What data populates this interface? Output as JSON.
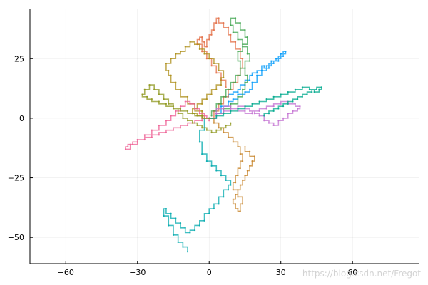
{
  "chart_data": {
    "type": "line",
    "title": "",
    "xlabel": "",
    "ylabel": "",
    "xlim": [
      -75,
      88
    ],
    "ylim": [
      -61,
      46
    ],
    "x_ticks": [
      -60,
      -30,
      0,
      30,
      60
    ],
    "y_ticks": [
      -50,
      -25,
      0,
      25
    ],
    "x_tick_labels": [
      "−60",
      "−30",
      "0",
      "30",
      "60"
    ],
    "y_tick_labels": [
      "−50",
      "−25",
      "0",
      "25"
    ],
    "grid": true,
    "legend": "none",
    "series": [
      {
        "color": "#009AFA",
        "x": [
          0,
          3,
          5,
          8,
          10,
          12,
          15,
          17,
          18,
          20,
          22,
          24,
          26,
          28,
          30,
          32,
          31,
          29,
          27,
          25,
          23,
          22,
          20,
          18,
          17,
          15,
          13,
          12,
          10,
          8
        ],
        "y": [
          0,
          2,
          5,
          7,
          8,
          10,
          11,
          12,
          15,
          18,
          20,
          22,
          24,
          25,
          27,
          28,
          26,
          24,
          23,
          21,
          22,
          20,
          19,
          18,
          16,
          14,
          12,
          11,
          10,
          9
        ]
      },
      {
        "color": "#E36F47",
        "x": [
          0,
          2,
          4,
          6,
          8,
          10,
          12,
          13,
          14,
          13,
          11,
          9,
          8,
          6,
          4,
          3,
          2,
          1,
          0,
          -1,
          -2,
          -3,
          -4,
          -5,
          -3,
          -1,
          1,
          3,
          5,
          7
        ],
        "y": [
          0,
          3,
          6,
          9,
          12,
          15,
          18,
          21,
          25,
          29,
          32,
          35,
          38,
          40,
          42,
          40,
          37,
          35,
          33,
          30,
          32,
          34,
          33,
          31,
          28,
          25,
          22,
          19,
          16,
          13
        ]
      },
      {
        "color": "#3EA44E",
        "x": [
          0,
          3,
          6,
          9,
          12,
          14,
          15,
          16,
          15,
          13,
          12,
          14,
          16,
          15,
          13,
          11,
          9,
          10,
          12,
          14,
          16,
          17,
          15,
          13,
          11,
          9,
          7,
          5,
          3,
          1
        ],
        "y": [
          0,
          2,
          4,
          6,
          9,
          12,
          15,
          18,
          21,
          24,
          28,
          31,
          34,
          37,
          40,
          42,
          39,
          36,
          33,
          30,
          27,
          24,
          21,
          18,
          15,
          12,
          9,
          6,
          3,
          1
        ]
      },
      {
        "color": "#C371D2",
        "x": [
          0,
          3,
          6,
          9,
          12,
          15,
          17,
          19,
          21,
          23,
          25,
          27,
          29,
          31,
          33,
          35,
          37,
          38,
          36,
          33,
          30,
          27,
          24,
          21,
          18,
          15,
          12,
          9,
          6,
          3
        ],
        "y": [
          0,
          2,
          3,
          4,
          5,
          4,
          3,
          2,
          1,
          -1,
          -2,
          -3,
          -1,
          0,
          2,
          3,
          4,
          5,
          6,
          7,
          6,
          5,
          4,
          3,
          2,
          3,
          4,
          5,
          4,
          2
        ]
      },
      {
        "color": "#AC8D18",
        "x": [
          0,
          -3,
          -6,
          -9,
          -12,
          -14,
          -16,
          -17,
          -18,
          -16,
          -14,
          -12,
          -10,
          -8,
          -6,
          -4,
          -2,
          0,
          2,
          4,
          6,
          5,
          3,
          1,
          -1,
          -3,
          -5,
          -7,
          -5,
          -2
        ],
        "y": [
          0,
          3,
          6,
          9,
          12,
          15,
          18,
          20,
          23,
          25,
          27,
          28,
          30,
          32,
          31,
          29,
          27,
          25,
          23,
          20,
          17,
          14,
          12,
          10,
          8,
          6,
          4,
          2,
          1,
          0
        ]
      },
      {
        "color": "#00A9AD",
        "x": [
          0,
          -2,
          -4,
          -3,
          -1,
          1,
          3,
          5,
          7,
          9,
          8,
          6,
          4,
          2,
          0,
          -2,
          -4,
          -6,
          -8,
          -10,
          -12,
          -14,
          -16,
          -18,
          -19,
          -17,
          -15,
          -13,
          -11,
          -9
        ],
        "y": [
          0,
          -5,
          -10,
          -15,
          -18,
          -20,
          -22,
          -24,
          -26,
          -28,
          -30,
          -33,
          -36,
          -38,
          -40,
          -43,
          -45,
          -47,
          -48,
          -46,
          -44,
          -42,
          -40,
          -38,
          -41,
          -45,
          -49,
          -52,
          -54,
          -56
        ]
      },
      {
        "color": "#ED5E93",
        "x": [
          0,
          -3,
          -6,
          -9,
          -12,
          -15,
          -18,
          -21,
          -24,
          -27,
          -30,
          -32,
          -34,
          -35,
          -33,
          -30,
          -27,
          -24,
          -21,
          -18,
          -16,
          -14,
          -12,
          -10,
          -8,
          -6,
          -4,
          -2,
          -1,
          0
        ],
        "y": [
          0,
          -1,
          -2,
          -3,
          -4,
          -5,
          -6,
          -7,
          -8,
          -9,
          -10,
          -11,
          -12,
          -13,
          -11,
          -9,
          -7,
          -5,
          -3,
          -1,
          1,
          3,
          5,
          7,
          6,
          4,
          2,
          1,
          0,
          -1
        ]
      },
      {
        "color": "#C68225",
        "x": [
          0,
          2,
          4,
          6,
          8,
          10,
          12,
          13,
          14,
          13,
          12,
          11,
          10,
          12,
          14,
          13,
          12,
          11,
          10,
          11,
          12,
          13,
          14,
          15,
          16,
          17,
          18,
          19,
          17,
          15
        ],
        "y": [
          0,
          -2,
          -4,
          -6,
          -8,
          -10,
          -12,
          -15,
          -18,
          -21,
          -24,
          -27,
          -30,
          -33,
          -36,
          -39,
          -38,
          -36,
          -34,
          -32,
          -30,
          -28,
          -26,
          -24,
          -22,
          -20,
          -18,
          -16,
          -14,
          -12
        ]
      },
      {
        "color": "#00A98D",
        "x": [
          0,
          3,
          6,
          9,
          12,
          15,
          18,
          21,
          24,
          27,
          30,
          33,
          36,
          39,
          42,
          44,
          46,
          47,
          45,
          43,
          41,
          39,
          37,
          35,
          33,
          31,
          29,
          27,
          25,
          23
        ],
        "y": [
          0,
          1,
          2,
          3,
          4,
          5,
          6,
          7,
          8,
          9,
          10,
          11,
          12,
          13,
          12,
          11,
          12,
          13,
          12,
          11,
          10,
          9,
          8,
          7,
          6,
          5,
          4,
          3,
          2,
          1
        ]
      },
      {
        "color": "#8E971D",
        "x": [
          0,
          -3,
          -6,
          -9,
          -12,
          -15,
          -18,
          -21,
          -24,
          -26,
          -28,
          -27,
          -25,
          -23,
          -21,
          -19,
          -17,
          -15,
          -13,
          -11,
          -9,
          -7,
          -5,
          -3,
          -1,
          1,
          3,
          5,
          7,
          9
        ],
        "y": [
          0,
          1,
          2,
          3,
          4,
          5,
          6,
          7,
          8,
          9,
          10,
          12,
          14,
          12,
          10,
          8,
          6,
          4,
          2,
          0,
          -1,
          -2,
          -3,
          -4,
          -5,
          -6,
          -5,
          -4,
          -3,
          -2
        ]
      }
    ],
    "watermark": "https://blog.csdn.net/Fregot"
  }
}
